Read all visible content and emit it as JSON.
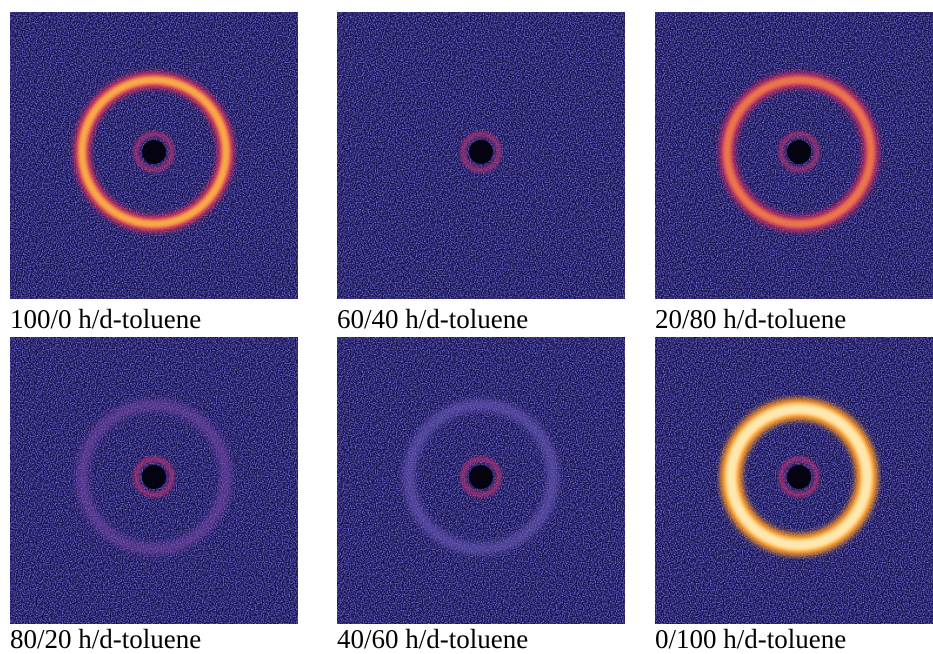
{
  "panels": [
    {
      "label": "100/0 h/d-toluene"
    },
    {
      "label": "60/40 h/d-toluene"
    },
    {
      "label": "20/80 h/d-toluene"
    },
    {
      "label": "80/20 h/d-toluene"
    },
    {
      "label": "40/60 h/d-toluene"
    },
    {
      "label": "0/100 h/d-toluene"
    }
  ]
}
